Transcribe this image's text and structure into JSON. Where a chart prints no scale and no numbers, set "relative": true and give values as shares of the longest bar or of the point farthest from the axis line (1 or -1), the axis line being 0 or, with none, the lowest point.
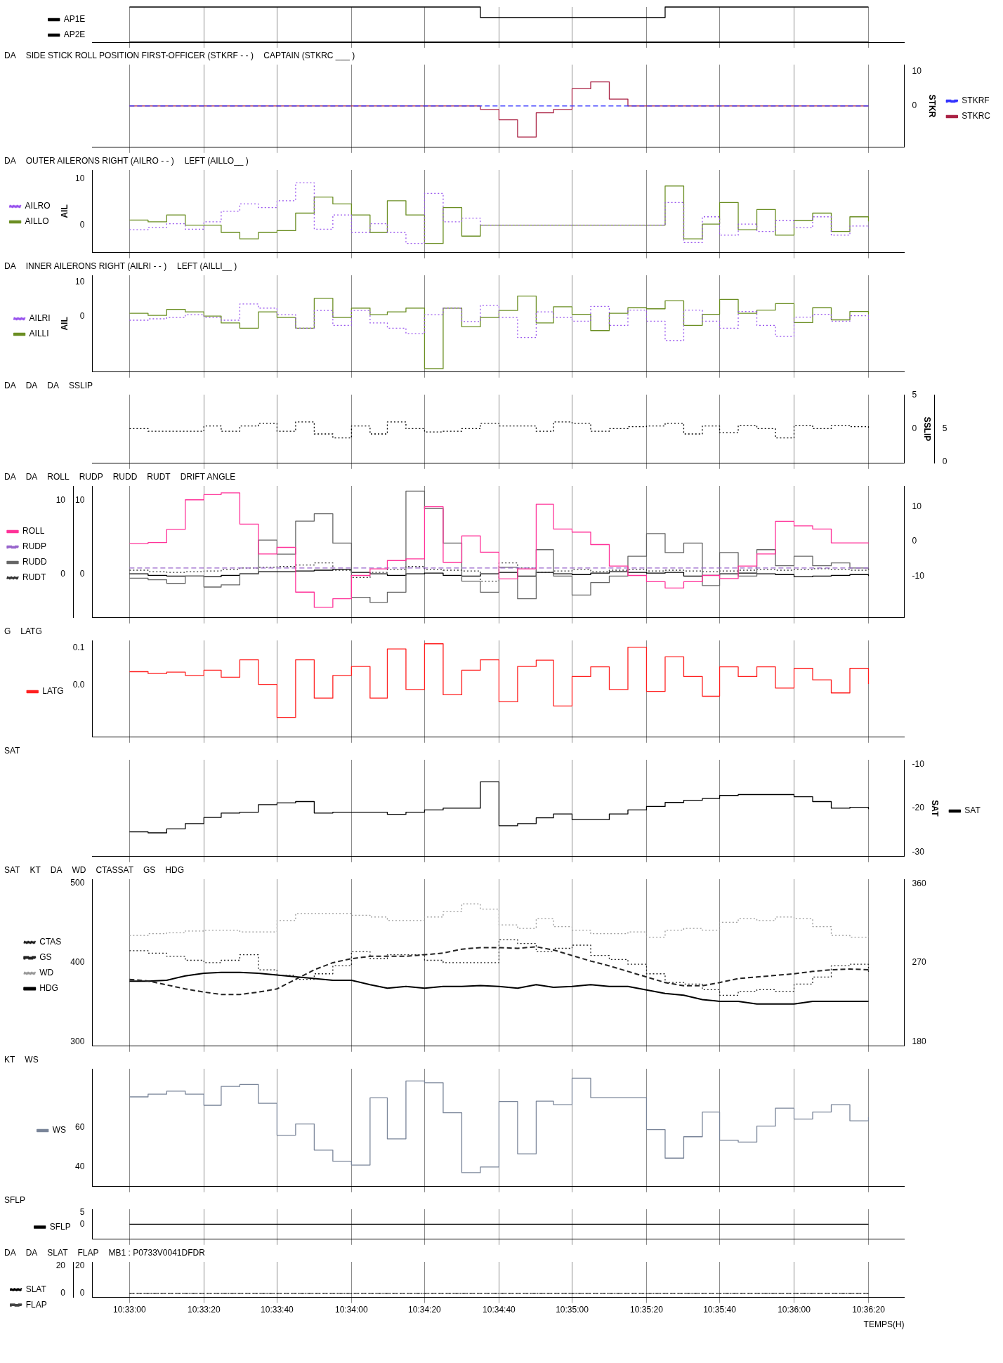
{
  "chart_data": [
    {
      "type": "step",
      "relative": true,
      "tick_labels": false,
      "legend": "left",
      "grid": "x",
      "xlim": [
        10.5472,
        10.6083
      ],
      "xticks": [
        10.55,
        10.5556,
        10.5611,
        10.5667,
        10.5722,
        10.5778,
        10.5833,
        10.5889,
        10.5944,
        10.6,
        10.6056
      ],
      "x": [
        10.55,
        10.5514,
        10.5528,
        10.5542,
        10.5556,
        10.5569,
        10.5583,
        10.5597,
        10.5611,
        10.5625,
        10.5639,
        10.5653,
        10.5667,
        10.5681,
        10.5694,
        10.5708,
        10.5722,
        10.5736,
        10.575,
        10.5764,
        10.5778,
        10.5792,
        10.5806,
        10.5819,
        10.5833,
        10.5847,
        10.5861,
        10.5875,
        10.5889,
        10.5903,
        10.5917,
        10.5931,
        10.5944,
        10.5958,
        10.5972,
        10.5986,
        10.6,
        10.6014,
        10.6028,
        10.6042,
        10.6056
      ],
      "series": [
        {
          "name": "AP1E",
          "color": "#000000",
          "values": [
            1,
            1,
            1,
            1,
            1,
            1,
            1,
            1,
            1,
            1,
            1,
            1,
            1,
            1,
            1,
            1,
            1,
            1,
            1,
            0.7,
            0.7,
            0.7,
            0.7,
            0.7,
            0.7,
            0.7,
            0.7,
            0.7,
            0.7,
            1,
            1,
            1,
            1,
            1,
            1,
            1,
            1,
            1,
            1,
            1,
            1
          ]
        },
        {
          "name": "AP2E",
          "color": "#000000",
          "values": [
            0,
            0,
            0,
            0,
            0,
            0,
            0,
            0,
            0,
            0,
            0,
            0,
            0,
            0,
            0,
            0,
            0,
            0,
            0,
            0,
            0,
            0,
            0,
            0,
            0,
            0,
            0,
            0,
            0,
            0,
            0,
            0,
            0,
            0,
            0,
            0,
            0,
            0,
            0,
            0,
            0
          ]
        }
      ]
    },
    {
      "type": "step",
      "tick_labels": "y",
      "legend": "right",
      "grid": "x",
      "xlim": [
        10.5472,
        10.6083
      ],
      "xticks": [
        10.55,
        10.5556,
        10.5611,
        10.5667,
        10.5722,
        10.5778,
        10.5833,
        10.5889,
        10.5944,
        10.6,
        10.6056
      ],
      "y2lim": [
        -12,
        12
      ],
      "y2ticks": [
        0,
        10
      ],
      "y2label": "STKR",
      "x": [
        10.55,
        10.5514,
        10.5528,
        10.5542,
        10.5556,
        10.5569,
        10.5583,
        10.5597,
        10.5611,
        10.5625,
        10.5639,
        10.5653,
        10.5667,
        10.5681,
        10.5694,
        10.5708,
        10.5722,
        10.5736,
        10.575,
        10.5764,
        10.5778,
        10.5792,
        10.5806,
        10.5819,
        10.5833,
        10.5847,
        10.5861,
        10.5875,
        10.5889,
        10.5903,
        10.5917,
        10.5931,
        10.5944,
        10.5958,
        10.5972,
        10.5986,
        10.6,
        10.6014,
        10.6028,
        10.6042,
        10.6056
      ],
      "annotations": [
        "DA",
        "SIDE STICK ROLL POSITION FIRST-OFFICER (STKRF - - )",
        "CAPTAIN (STKRC ___ )"
      ],
      "series": [
        {
          "name": "STKRF",
          "color": "#3333ff",
          "axis": "y2",
          "line_style": "dashed",
          "values": [
            0,
            0,
            0,
            0,
            0,
            0,
            0,
            0,
            0,
            0,
            0,
            0,
            0,
            0,
            0,
            0,
            0,
            0,
            0,
            0,
            0,
            0,
            0,
            0,
            0,
            0,
            0,
            0,
            0,
            0,
            0,
            0,
            0,
            0,
            0,
            0,
            0,
            0,
            0,
            0,
            0
          ]
        },
        {
          "name": "STKRC",
          "color": "#aa2244",
          "axis": "y2",
          "values": [
            0,
            0,
            0,
            0,
            0,
            0,
            0,
            0,
            0,
            0,
            0,
            0,
            0,
            0,
            0,
            0,
            0,
            0,
            0,
            -1,
            -4,
            -9,
            -2,
            -1,
            5,
            7,
            2,
            0,
            0,
            0,
            0,
            0,
            0,
            0,
            0,
            0,
            0,
            0,
            0,
            0,
            0
          ]
        }
      ]
    },
    {
      "type": "step",
      "tick_labels": "y",
      "legend": "left",
      "grid": "x",
      "xlim": [
        10.5472,
        10.6083
      ],
      "xticks": [
        10.55,
        10.5556,
        10.5611,
        10.5667,
        10.5722,
        10.5778,
        10.5833,
        10.5889,
        10.5944,
        10.6,
        10.6056
      ],
      "ylim": [
        -6,
        12
      ],
      "yticks": [
        0,
        10
      ],
      "ylabel": "AIL",
      "x": [
        10.55,
        10.5514,
        10.5528,
        10.5542,
        10.5556,
        10.5569,
        10.5583,
        10.5597,
        10.5611,
        10.5625,
        10.5639,
        10.5653,
        10.5667,
        10.5681,
        10.5694,
        10.5708,
        10.5722,
        10.5736,
        10.575,
        10.5764,
        10.5778,
        10.5792,
        10.5806,
        10.5819,
        10.5833,
        10.5847,
        10.5861,
        10.5875,
        10.5889,
        10.5903,
        10.5917,
        10.5931,
        10.5944,
        10.5958,
        10.5972,
        10.5986,
        10.6,
        10.6014,
        10.6028,
        10.6042,
        10.6056
      ],
      "annotations": [
        "DA",
        "OUTER AILERONS RIGHT (AILRO - - )",
        "LEFT (AILLO__ )"
      ],
      "series": [
        {
          "name": "AILRO",
          "color": "#9955ee",
          "line_style": "dotted",
          "values": [
            -1,
            -0.5,
            0.3,
            -0.9,
            0.7,
            3,
            4.6,
            3.8,
            5.3,
            9.2,
            -0.9,
            2.2,
            -1.6,
            0.3,
            -1.6,
            -4,
            6.9,
            0.7,
            1.5,
            0,
            0,
            0,
            0,
            0,
            0,
            0,
            0,
            0,
            0,
            4.9,
            -3.8,
            1.8,
            -2.2,
            0.2,
            -1.4,
            1,
            -0.6,
            1.8,
            -2.2,
            -0.2,
            -0.6
          ]
        },
        {
          "name": "AILLO",
          "color": "#6b8e23",
          "values": [
            1.1,
            0.7,
            2.2,
            0,
            0,
            -1.6,
            -3,
            -1.6,
            -1.2,
            2.6,
            6.1,
            4.6,
            2.2,
            -1.6,
            5.3,
            2.2,
            -4,
            3.8,
            -2.4,
            0,
            0,
            0,
            0,
            0,
            0,
            0,
            0,
            0,
            0,
            8.5,
            -3,
            0.2,
            4.9,
            -1,
            3.4,
            -2.2,
            1,
            2.6,
            -1.4,
            1.8,
            0.8
          ]
        }
      ]
    },
    {
      "type": "step",
      "tick_labels": "y",
      "legend": "left",
      "grid": "x",
      "xlim": [
        10.5472,
        10.6083
      ],
      "xticks": [
        10.55,
        10.5556,
        10.5611,
        10.5667,
        10.5722,
        10.5778,
        10.5833,
        10.5889,
        10.5944,
        10.6,
        10.6056
      ],
      "ylim": [
        -16,
        12
      ],
      "yticks": [
        0,
        10
      ],
      "ylabel": "AIL",
      "x": [
        10.55,
        10.5514,
        10.5528,
        10.5542,
        10.5556,
        10.5569,
        10.5583,
        10.5597,
        10.5611,
        10.5625,
        10.5639,
        10.5653,
        10.5667,
        10.5681,
        10.5694,
        10.5708,
        10.5722,
        10.5736,
        10.575,
        10.5764,
        10.5778,
        10.5792,
        10.5806,
        10.5819,
        10.5833,
        10.5847,
        10.5861,
        10.5875,
        10.5889,
        10.5903,
        10.5917,
        10.5931,
        10.5944,
        10.5958,
        10.5972,
        10.5986,
        10.6,
        10.6014,
        10.6028,
        10.6042,
        10.6056
      ],
      "annotations": [
        "DA",
        "INNER AILERONS RIGHT (AILRI - - )",
        "LEFT (AILLI__ )"
      ],
      "series": [
        {
          "name": "AILRI",
          "color": "#9955ee",
          "line_style": "dotted",
          "values": [
            -1,
            -0.6,
            -0.2,
            0.6,
            -0.2,
            -1,
            3.7,
            2.5,
            0.6,
            -3.3,
            1.8,
            -2.5,
            1.8,
            -1.8,
            -3.3,
            -4.9,
            0.6,
            2.5,
            -1.4,
            3.3,
            -0.2,
            -6,
            1.4,
            -0.2,
            -1.3,
            3,
            -2.5,
            1.9,
            -1.3,
            -6.9,
            1.9,
            -1.3,
            -3.3,
            1.5,
            -2.5,
            -5.7,
            -0.1,
            0.7,
            -1.3,
            0.3,
            -1.3
          ]
        },
        {
          "name": "AILLI",
          "color": "#6b8e23",
          "values": [
            1,
            0.4,
            2.1,
            1.4,
            0.2,
            -1.8,
            -3.3,
            1.4,
            -0.2,
            -3.3,
            5.3,
            -0.2,
            2.5,
            0.6,
            1.4,
            2.5,
            -15,
            2.5,
            -2.9,
            -0.2,
            1.8,
            6,
            -1.8,
            2.9,
            0.7,
            -4,
            1,
            2.6,
            2.3,
            4.6,
            -2.5,
            0.7,
            5,
            1,
            1.9,
            3.8,
            -1.7,
            2.6,
            -0.9,
            1.5,
            0.7
          ]
        }
      ]
    },
    {
      "type": "step",
      "tick_labels": "y",
      "grid": "x",
      "xlim": [
        10.5472,
        10.6083
      ],
      "xticks": [
        10.55,
        10.5556,
        10.5611,
        10.5667,
        10.5722,
        10.5778,
        10.5833,
        10.5889,
        10.5944,
        10.6,
        10.6056
      ],
      "y2lim": [
        -5.2,
        5.1
      ],
      "y2ticks": [
        0,
        5
      ],
      "y2label": "SSLIP",
      "y3lim": [
        -0.2,
        10.2
      ],
      "y3ticks": [
        0,
        5
      ],
      "x": [
        10.55,
        10.5514,
        10.5528,
        10.5542,
        10.5556,
        10.5569,
        10.5583,
        10.5597,
        10.5611,
        10.5625,
        10.5639,
        10.5653,
        10.5667,
        10.5681,
        10.5694,
        10.5708,
        10.5722,
        10.5736,
        10.575,
        10.5764,
        10.5778,
        10.5792,
        10.5806,
        10.5819,
        10.5833,
        10.5847,
        10.5861,
        10.5875,
        10.5889,
        10.5903,
        10.5917,
        10.5931,
        10.5944,
        10.5958,
        10.5972,
        10.5986,
        10.6,
        10.6014,
        10.6028,
        10.6042,
        10.6056
      ],
      "annotations": [
        "DA",
        "DA",
        "DA",
        "SSLIP"
      ],
      "series": [
        {
          "color": "#000000",
          "axis": "y2",
          "line_style": "dotted",
          "values": [
            0,
            -0.4,
            -0.4,
            -0.4,
            0.4,
            -0.4,
            0.4,
            0.8,
            -0.4,
            1,
            -0.8,
            -1.4,
            0.4,
            -0.8,
            1,
            0,
            -0.5,
            -0.4,
            0,
            0.8,
            0.4,
            0.4,
            -0.4,
            1,
            0.8,
            -0.4,
            0,
            0.3,
            0.4,
            0.8,
            -0.8,
            0.4,
            -0.6,
            0.5,
            0,
            -1.4,
            0.5,
            0,
            0.5,
            0.3,
            0
          ]
        }
      ]
    },
    {
      "type": "step",
      "tick_labels": "y",
      "legend": "left",
      "grid": "x",
      "xlim": [
        10.5472,
        10.6083
      ],
      "xticks": [
        10.55,
        10.5556,
        10.5611,
        10.5667,
        10.5722,
        10.5778,
        10.5833,
        10.5889,
        10.5944,
        10.6,
        10.6056
      ],
      "ylim": [
        -6,
        12
      ],
      "yticks": [
        0,
        10
      ],
      "y2lim": [
        -22,
        16
      ],
      "y2ticks": [
        -10,
        0,
        10
      ],
      "y3lim": [
        -6,
        12
      ],
      "y3ticks": [
        0,
        10
      ],
      "x": [
        10.55,
        10.5514,
        10.5528,
        10.5542,
        10.5556,
        10.5569,
        10.5583,
        10.5597,
        10.5611,
        10.5625,
        10.5639,
        10.5653,
        10.5667,
        10.5681,
        10.5694,
        10.5708,
        10.5722,
        10.5736,
        10.575,
        10.5764,
        10.5778,
        10.5792,
        10.5806,
        10.5819,
        10.5833,
        10.5847,
        10.5861,
        10.5875,
        10.5889,
        10.5903,
        10.5917,
        10.5931,
        10.5944,
        10.5958,
        10.5972,
        10.5986,
        10.6,
        10.6014,
        10.6028,
        10.6042,
        10.6056
      ],
      "annotations": [
        "DA",
        "DA",
        "ROLL",
        "RUDP",
        "RUDD",
        "RUDT",
        "DRIFT ANGLE"
      ],
      "series": [
        {
          "name": "ROLL",
          "color": "#ff3399",
          "axis": "y2",
          "values": [
            -0.6,
            -0.3,
            3.5,
            12,
            13.5,
            14,
            5,
            -3.6,
            -1.7,
            -14.6,
            -19,
            -16.5,
            -9.8,
            -7.9,
            -5.5,
            -5,
            10,
            -6,
            1.6,
            -3.1,
            -10.8,
            -7.9,
            10.7,
            3.6,
            2.7,
            -0.9,
            -7.1,
            -9.8,
            -11.6,
            -13.4,
            -11.6,
            -9.8,
            -10.7,
            -7.1,
            -3.6,
            5.8,
            4.5,
            3.6,
            -0.4,
            -0.4,
            -0.6
          ]
        },
        {
          "name": "RUDP",
          "color": "#9966cc",
          "axis": "y3",
          "line_style": "dashed",
          "values": [
            0.8,
            0.8,
            0.8,
            0.8,
            0.8,
            0.8,
            0.8,
            0.8,
            0.8,
            0.8,
            0.8,
            0.8,
            0.8,
            0.8,
            0.8,
            0.8,
            0.8,
            0.8,
            0.8,
            0.8,
            0.8,
            0.8,
            0.8,
            0.8,
            0.8,
            0.8,
            0.8,
            0.8,
            0.8,
            0.8,
            0.8,
            0.8,
            0.8,
            0.8,
            0.8,
            0.8,
            0.8,
            0.8,
            0.8,
            0.8,
            0.8
          ]
        },
        {
          "name": "RUDD",
          "color": "#666666",
          "values": [
            -0.6,
            -0.8,
            -1.3,
            -0.3,
            -1.8,
            -1.5,
            0,
            4.6,
            2.7,
            7.2,
            8.2,
            4.2,
            -3.2,
            -3.9,
            -2.5,
            11.3,
            8.9,
            4.2,
            -1,
            -2.5,
            0.9,
            -3.4,
            3.3,
            -0.3,
            -2.9,
            -1.2,
            -0.3,
            2.4,
            5.5,
            2.9,
            4.2,
            -1.6,
            2.9,
            -0.3,
            3.3,
            1.1,
            2.4,
            1.1,
            1.5,
            0.8,
            0.6
          ]
        },
        {
          "name": "RUDT",
          "color": "#333333",
          "line_style": "dotted",
          "values": [
            0.5,
            0.3,
            0.2,
            0.3,
            0.4,
            0.6,
            0.8,
            0.9,
            1,
            1.2,
            1.5,
            0.5,
            -0.5,
            0.2,
            0.6,
            1,
            0.6,
            0.5,
            0.4,
            -1,
            1.5,
            0.8,
            0.2,
            0.4,
            0.6,
            0.3,
            0.5,
            0.6,
            0.4,
            0.5,
            0.4,
            0.3,
            0.4,
            0.5,
            0.6,
            0.5,
            0.6,
            0.7,
            0.6,
            0.5,
            0.7
          ]
        },
        {
          "color": "#000000",
          "values": [
            0,
            -0.2,
            -0.3,
            -0.3,
            -0.4,
            -0.2,
            0,
            0.3,
            0.3,
            0.4,
            0.5,
            0.6,
            0.2,
            0,
            -0.2,
            0,
            0.1,
            -0.2,
            -0.3,
            0,
            0.2,
            -0.3,
            0.2,
            0,
            -0.1,
            0.1,
            0.3,
            0.2,
            0.1,
            0.2,
            -0.3,
            -0.2,
            0,
            0.1,
            0,
            -0.1,
            -0.4,
            -0.3,
            -0.2,
            -0.1,
            -0.3
          ]
        }
      ]
    },
    {
      "type": "step",
      "tick_labels": "y",
      "legend": "left",
      "grid": "x",
      "xlim": [
        10.5472,
        10.6083
      ],
      "xticks": [
        10.55,
        10.5556,
        10.5611,
        10.5667,
        10.5722,
        10.5778,
        10.5833,
        10.5889,
        10.5944,
        10.6,
        10.6056
      ],
      "ylim": [
        -0.14,
        0.12
      ],
      "yticks": [
        {
          "value": 0,
          "label": "0.0"
        },
        0.1
      ],
      "x": [
        10.55,
        10.5514,
        10.5528,
        10.5542,
        10.5556,
        10.5569,
        10.5583,
        10.5597,
        10.5611,
        10.5625,
        10.5639,
        10.5653,
        10.5667,
        10.5681,
        10.5694,
        10.5708,
        10.5722,
        10.5736,
        10.575,
        10.5764,
        10.5778,
        10.5792,
        10.5806,
        10.5819,
        10.5833,
        10.5847,
        10.5861,
        10.5875,
        10.5889,
        10.5903,
        10.5917,
        10.5931,
        10.5944,
        10.5958,
        10.5972,
        10.5986,
        10.6,
        10.6014,
        10.6028,
        10.6042,
        10.6056
      ],
      "annotations": [
        "G",
        "LATG"
      ],
      "series": [
        {
          "name": "LATG",
          "color": "#ff2020",
          "values": [
            0.036,
            0.031,
            0.035,
            0.026,
            0.04,
            0.021,
            0.068,
            0.002,
            -0.087,
            0.068,
            -0.035,
            0.026,
            0.05,
            -0.035,
            0.097,
            -0.012,
            0.111,
            -0.026,
            0.04,
            0.068,
            -0.045,
            0.05,
            0.067,
            -0.056,
            0.023,
            0.049,
            -0.012,
            0.102,
            -0.017,
            0.076,
            0.023,
            -0.03,
            0.049,
            0.023,
            0.049,
            -0.008,
            0.045,
            0.014,
            -0.021,
            0.045,
            0.003
          ]
        }
      ]
    },
    {
      "type": "step",
      "tick_labels": "y",
      "legend": "right",
      "grid": "x",
      "xlim": [
        10.5472,
        10.6083
      ],
      "xticks": [
        10.55,
        10.5556,
        10.5611,
        10.5667,
        10.5722,
        10.5778,
        10.5833,
        10.5889,
        10.5944,
        10.6,
        10.6056
      ],
      "y2lim": [
        -31,
        -9
      ],
      "y2ticks": [
        -10,
        -20,
        -30
      ],
      "y2label": "SAT",
      "x": [
        10.55,
        10.5514,
        10.5528,
        10.5542,
        10.5556,
        10.5569,
        10.5583,
        10.5597,
        10.5611,
        10.5625,
        10.5639,
        10.5653,
        10.5667,
        10.5681,
        10.5694,
        10.5708,
        10.5722,
        10.5736,
        10.575,
        10.5764,
        10.5778,
        10.5792,
        10.5806,
        10.5819,
        10.5833,
        10.5847,
        10.5861,
        10.5875,
        10.5889,
        10.5903,
        10.5917,
        10.5931,
        10.5944,
        10.5958,
        10.5972,
        10.5986,
        10.6,
        10.6014,
        10.6028,
        10.6042,
        10.6056
      ],
      "annotations": [
        "SAT"
      ],
      "series": [
        {
          "name": "SAT",
          "color": "#000000",
          "axis": "y2",
          "values": [
            -25.4,
            -25.6,
            -24.7,
            -23.5,
            -22.1,
            -21.1,
            -20.9,
            -19.2,
            -18.8,
            -18.5,
            -21.1,
            -20.9,
            -20.9,
            -20.9,
            -21.4,
            -20.9,
            -20.4,
            -20,
            -20,
            -14,
            -24,
            -23.5,
            -22.2,
            -21.3,
            -22.6,
            -22.6,
            -21.3,
            -20.4,
            -19.6,
            -18.7,
            -18.2,
            -17.8,
            -17.1,
            -16.9,
            -16.9,
            -16.9,
            -17.4,
            -18.5,
            -20,
            -19.8,
            -20.2
          ]
        }
      ]
    },
    {
      "type": "step",
      "tick_labels": "y",
      "legend": "left",
      "grid": "x",
      "xlim": [
        10.5472,
        10.6083
      ],
      "xticks": [
        10.55,
        10.5556,
        10.5611,
        10.5667,
        10.5722,
        10.5778,
        10.5833,
        10.5889,
        10.5944,
        10.6,
        10.6056
      ],
      "ylim": [
        295,
        505
      ],
      "yticks": [
        300,
        400,
        500
      ],
      "y2lim": [
        175,
        365
      ],
      "y2ticks": [
        180,
        270,
        360
      ],
      "x": [
        10.55,
        10.5514,
        10.5528,
        10.5542,
        10.5556,
        10.5569,
        10.5583,
        10.5597,
        10.5611,
        10.5625,
        10.5639,
        10.5653,
        10.5667,
        10.5681,
        10.5694,
        10.5708,
        10.5722,
        10.5736,
        10.575,
        10.5764,
        10.5778,
        10.5792,
        10.5806,
        10.5819,
        10.5833,
        10.5847,
        10.5861,
        10.5875,
        10.5889,
        10.5903,
        10.5917,
        10.5931,
        10.5944,
        10.5958,
        10.5972,
        10.5986,
        10.6,
        10.6014,
        10.6028,
        10.6042,
        10.6056
      ],
      "annotations": [
        "SAT",
        "KT",
        "DA",
        "WD",
        "CTASSAT",
        "GS",
        "HDG"
      ],
      "series": [
        {
          "name": "CTAS",
          "color": "#222222",
          "line_style": "dotted",
          "values": [
            415,
            412,
            408,
            403,
            400,
            403,
            410,
            391,
            384,
            379,
            386,
            396,
            414,
            405,
            410,
            410,
            403,
            400,
            400,
            400,
            429,
            424,
            414,
            418,
            422,
            409,
            404,
            398,
            386,
            375,
            373,
            366,
            359,
            364,
            366,
            364,
            373,
            382,
            396,
            398,
            386
          ]
        },
        {
          "name": "GS",
          "type": "line",
          "color": "#222222",
          "line_style": "dashed",
          "values": [
            379,
            377,
            372,
            367,
            363,
            360,
            360,
            363,
            367,
            379,
            391,
            400,
            405,
            408,
            408,
            408,
            410,
            412,
            417,
            419,
            419,
            418,
            420,
            416,
            409,
            402,
            396,
            389,
            382,
            375,
            371,
            371,
            375,
            380,
            382,
            384,
            386,
            389,
            391,
            392,
            391
          ]
        },
        {
          "name": "WD",
          "color": "#999999",
          "axis": "y2",
          "line_style": "dotted",
          "values": [
            301,
            303,
            304,
            306,
            307,
            307,
            305,
            305,
            318,
            326,
            326,
            326,
            324,
            322,
            318,
            318,
            322,
            328,
            337,
            331,
            313,
            309,
            320,
            311,
            307,
            303,
            303,
            305,
            299,
            307,
            309,
            307,
            316,
            320,
            318,
            322,
            320,
            311,
            301,
            299,
            301
          ]
        },
        {
          "name": "HDG",
          "type": "line",
          "color": "#000000",
          "axis": "y2",
          "values": [
            249,
            249,
            250,
            255,
            258,
            259,
            259,
            258,
            256,
            254,
            252,
            250,
            250,
            245,
            241,
            243,
            241,
            243,
            243,
            244,
            243,
            241,
            245,
            242,
            243,
            245,
            243,
            243,
            239,
            235,
            233,
            228,
            226,
            226,
            223,
            223,
            223,
            226,
            226,
            226,
            226
          ]
        }
      ]
    },
    {
      "type": "step",
      "tick_labels": "y",
      "legend": "left",
      "grid": "x",
      "xlim": [
        10.5472,
        10.6083
      ],
      "xticks": [
        10.55,
        10.5556,
        10.5611,
        10.5667,
        10.5722,
        10.5778,
        10.5833,
        10.5889,
        10.5944,
        10.6,
        10.6056
      ],
      "ylim": [
        30,
        90
      ],
      "yticks": [
        40,
        60
      ],
      "x": [
        10.55,
        10.5514,
        10.5528,
        10.5542,
        10.5556,
        10.5569,
        10.5583,
        10.5597,
        10.5611,
        10.5625,
        10.5639,
        10.5653,
        10.5667,
        10.5681,
        10.5694,
        10.5708,
        10.5722,
        10.5736,
        10.575,
        10.5764,
        10.5778,
        10.5792,
        10.5806,
        10.5819,
        10.5833,
        10.5847,
        10.5861,
        10.5875,
        10.5889,
        10.5903,
        10.5917,
        10.5931,
        10.5944,
        10.5958,
        10.5972,
        10.5986,
        10.6,
        10.6014,
        10.6028,
        10.6042,
        10.6056
      ],
      "annotations": [
        "KT",
        "WS"
      ],
      "series": [
        {
          "name": "WS",
          "color": "#7a8599",
          "values": [
            75.7,
            77.1,
            78.6,
            77.1,
            71.4,
            81,
            82,
            72.4,
            56.2,
            61.9,
            48.6,
            42.9,
            41,
            75.2,
            54.3,
            83.8,
            82.9,
            67.6,
            37.1,
            40,
            73.3,
            46.7,
            73.5,
            71.7,
            85.2,
            75.3,
            75.3,
            75.3,
            59,
            44.5,
            55.4,
            68,
            53.6,
            52.7,
            60.8,
            69.9,
            64.4,
            68,
            71.7,
            63.5,
            65.3
          ]
        }
      ]
    },
    {
      "type": "step",
      "tick_labels": "y",
      "legend": "left",
      "grid": "x",
      "xlim": [
        10.5472,
        10.6083
      ],
      "xticks": [
        10.55,
        10.5556,
        10.5611,
        10.5667,
        10.5722,
        10.5778,
        10.5833,
        10.5889,
        10.5944,
        10.6,
        10.6056
      ],
      "ylim": [
        -6.5,
        6.5
      ],
      "yticks": [
        0,
        5
      ],
      "x": [
        10.55,
        10.5514,
        10.5528,
        10.5542,
        10.5556,
        10.5569,
        10.5583,
        10.5597,
        10.5611,
        10.5625,
        10.5639,
        10.5653,
        10.5667,
        10.5681,
        10.5694,
        10.5708,
        10.5722,
        10.5736,
        10.575,
        10.5764,
        10.5778,
        10.5792,
        10.5806,
        10.5819,
        10.5833,
        10.5847,
        10.5861,
        10.5875,
        10.5889,
        10.5903,
        10.5917,
        10.5931,
        10.5944,
        10.5958,
        10.5972,
        10.5986,
        10.6,
        10.6014,
        10.6028,
        10.6042,
        10.6056
      ],
      "annotations": [
        "SFLP"
      ],
      "series": [
        {
          "name": "SFLP",
          "color": "#000000",
          "values": [
            0,
            0,
            0,
            0,
            0,
            0,
            0,
            0,
            0,
            0,
            0,
            0,
            0,
            0,
            0,
            0,
            0,
            0,
            0,
            0,
            0,
            0,
            0,
            0,
            0,
            0,
            0,
            0,
            0,
            0,
            0,
            0,
            0,
            0,
            0,
            0,
            0,
            0,
            0,
            0,
            0
          ]
        }
      ]
    },
    {
      "type": "step",
      "legend": "left",
      "grid": "x",
      "xlim": [
        10.5472,
        10.6083
      ],
      "xticks": [
        {
          "value": 10.55,
          "label": "10:33:00"
        },
        {
          "value": 10.5556,
          "label": "10:33:20"
        },
        {
          "value": 10.5611,
          "label": "10:33:40"
        },
        {
          "value": 10.5667,
          "label": "10:34:00"
        },
        {
          "value": 10.5722,
          "label": "10:34:20"
        },
        {
          "value": 10.5778,
          "label": "10:34:40"
        },
        {
          "value": 10.5833,
          "label": "10:35:00"
        },
        {
          "value": 10.5889,
          "label": "10:35:20"
        },
        {
          "value": 10.5944,
          "label": "10:35:40"
        },
        {
          "value": 10.6,
          "label": "10:36:00"
        },
        {
          "value": 10.6056,
          "label": "10:36:20"
        }
      ],
      "xlabel": "TEMPS(H)",
      "ylim": [
        -3,
        23
      ],
      "yticks": [
        0,
        20
      ],
      "y3lim": [
        -3,
        23
      ],
      "y3ticks": [
        0,
        20
      ],
      "x": [
        10.55,
        10.5514,
        10.5528,
        10.5542,
        10.5556,
        10.5569,
        10.5583,
        10.5597,
        10.5611,
        10.5625,
        10.5639,
        10.5653,
        10.5667,
        10.5681,
        10.5694,
        10.5708,
        10.5722,
        10.5736,
        10.575,
        10.5764,
        10.5778,
        10.5792,
        10.5806,
        10.5819,
        10.5833,
        10.5847,
        10.5861,
        10.5875,
        10.5889,
        10.5903,
        10.5917,
        10.5931,
        10.5944,
        10.5958,
        10.5972,
        10.5986,
        10.6,
        10.6014,
        10.6028,
        10.6042,
        10.6056
      ],
      "annotations": [
        "DA",
        "DA",
        "SLAT",
        "FLAP",
        "MB1 : P0733V0041DFDR"
      ],
      "series": [
        {
          "name": "SLAT",
          "color": "#000000",
          "line_style": "dotted",
          "values": [
            0,
            0,
            0,
            0,
            0,
            0,
            0,
            0,
            0,
            0,
            0,
            0,
            0,
            0,
            0,
            0,
            0,
            0,
            0,
            0,
            0,
            0,
            0,
            0,
            0,
            0,
            0,
            0,
            0,
            0,
            0,
            0,
            0,
            0,
            0,
            0,
            0,
            0,
            0,
            0,
            0
          ]
        },
        {
          "name": "FLAP",
          "color": "#444444",
          "axis": "y3",
          "line_style": "dashed",
          "values": [
            0,
            0,
            0,
            0,
            0,
            0,
            0,
            0,
            0,
            0,
            0,
            0,
            0,
            0,
            0,
            0,
            0,
            0,
            0,
            0,
            0,
            0,
            0,
            0,
            0,
            0,
            0,
            0,
            0,
            0,
            0,
            0,
            0,
            0,
            0,
            0,
            0,
            0,
            0,
            0,
            0
          ]
        }
      ]
    }
  ]
}
